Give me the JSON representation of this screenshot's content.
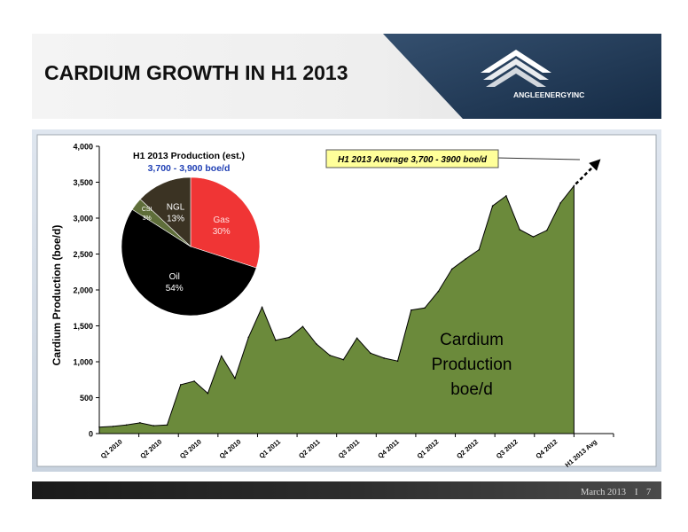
{
  "header": {
    "title": "CARDIUM GROWTH IN H1 2013",
    "logo_text": "ANGLEENERGYINC"
  },
  "footer": {
    "date": "March 2013",
    "separator": "I",
    "page_number": "7"
  },
  "colors": {
    "area_fill": "#6b8a3b",
    "header_dark": "#1f3550",
    "pie_gas": "#f03535",
    "pie_oil": "#000000",
    "pie_csi": "#5f6e3a",
    "pie_ngl": "#3b3323",
    "subtitle_blue": "#1f3fb4",
    "callout_fill": "#ffff9a"
  },
  "chart_data": {
    "type": "area",
    "ylabel": "Cardium Production (boe/d)",
    "ylim": [
      0,
      4000
    ],
    "yticks": [
      "0",
      "500",
      "1,000",
      "1,500",
      "2,000",
      "2,500",
      "3,000",
      "3,500",
      "4,000"
    ],
    "xticks": [
      "Q1 2010",
      "Q2 2010",
      "Q3 2010",
      "Q4 2010",
      "Q1 2011",
      "Q2 2011",
      "Q3 2011",
      "Q4 2011",
      "Q1 2012",
      "Q2 2012",
      "Q3 2012",
      "Q4 2012",
      "H1 2013 Avg"
    ],
    "grid": false,
    "series": [
      {
        "values": [
          90,
          100,
          120,
          150,
          110,
          120,
          680,
          730,
          560,
          1080,
          770,
          1340,
          1760,
          1300,
          1340,
          1490,
          1250,
          1090,
          1030,
          1330,
          1120,
          1050,
          1010,
          1720,
          1750,
          1980,
          2290,
          2430,
          2560,
          3170,
          3310,
          2840,
          2740,
          2830,
          3210,
          3450
        ]
      }
    ],
    "area_label": [
      "Cardium",
      "Production",
      "boe/d"
    ],
    "projection_target": 3800,
    "annotation": "H1 2013 Average 3,700 - 3900 boe/d",
    "pie": {
      "title": "H1 2013 Production (est.)",
      "subtitle": "3,700 - 3,900 boe/d",
      "slices": [
        {
          "label": "Gas",
          "value": 30,
          "pct": "30%"
        },
        {
          "label": "Oil",
          "value": 54,
          "pct": "54%"
        },
        {
          "label": "CSI",
          "value": 3,
          "pct": "3%"
        },
        {
          "label": "NGL",
          "value": 13,
          "pct": "13%"
        }
      ]
    }
  }
}
